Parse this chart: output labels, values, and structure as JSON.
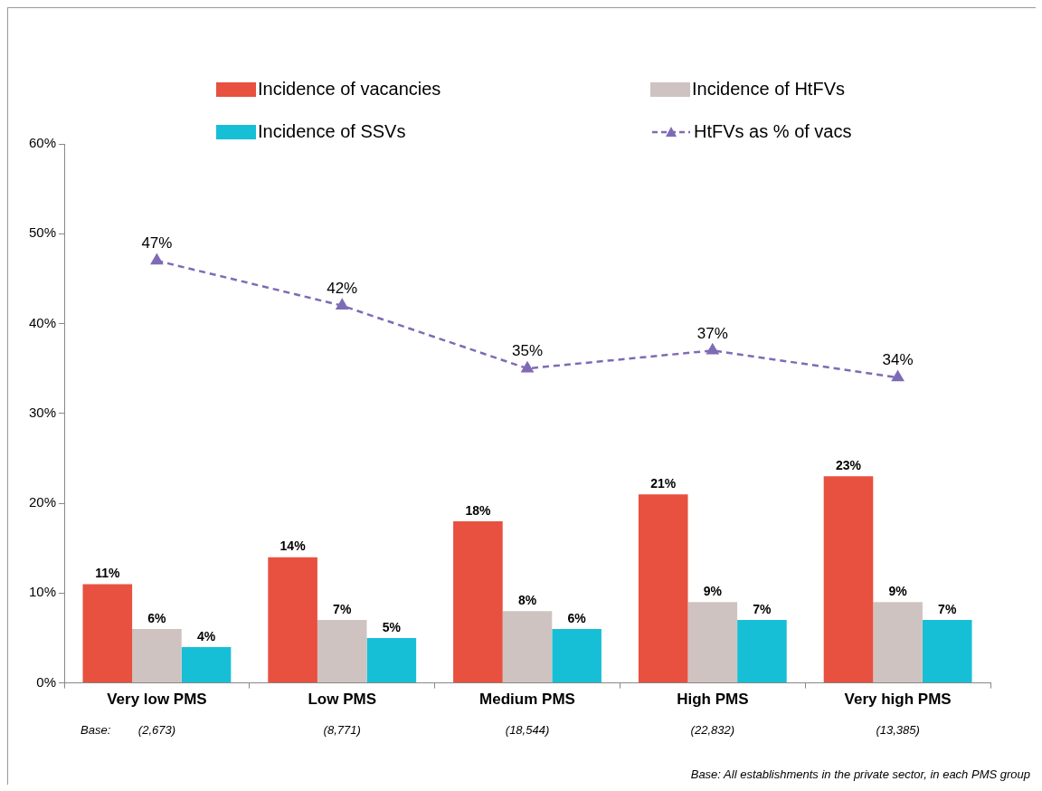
{
  "chart_data": {
    "type": "bar",
    "categories": [
      "Very low PMS",
      "Low PMS",
      "Medium PMS",
      "High PMS",
      "Very high PMS"
    ],
    "series": [
      {
        "name": "Incidence of vacancies",
        "color": "#e8503f",
        "values": [
          11,
          14,
          18,
          21,
          23
        ],
        "value_labels": [
          "11%",
          "14%",
          "18%",
          "21%",
          "23%"
        ]
      },
      {
        "name": "Incidence of HtFVs",
        "color": "#cfc3c1",
        "values": [
          6,
          7,
          8,
          9,
          9
        ],
        "value_labels": [
          "6%",
          "7%",
          "8%",
          "9%",
          "9%"
        ]
      },
      {
        "name": "Incidence of SSVs",
        "color": "#17bfd6",
        "values": [
          4,
          5,
          6,
          7,
          7
        ],
        "value_labels": [
          "4%",
          "5%",
          "6%",
          "7%",
          "7%"
        ]
      },
      {
        "name": "HtFVs as % of vacs",
        "type": "line",
        "color": "#7f6bb5",
        "values": [
          47,
          42,
          35,
          37,
          34
        ],
        "value_labels": [
          "47%",
          "42%",
          "35%",
          "37%",
          "34%"
        ]
      }
    ],
    "ylim": [
      0,
      60
    ],
    "yticks": [
      {
        "value": 0,
        "label": "0%"
      },
      {
        "value": 10,
        "label": "10%"
      },
      {
        "value": 20,
        "label": "20%"
      },
      {
        "value": 30,
        "label": "30%"
      },
      {
        "value": 40,
        "label": "40%"
      },
      {
        "value": 50,
        "label": "50%"
      },
      {
        "value": 60,
        "label": "60%"
      }
    ],
    "grid": false,
    "legend": "top",
    "marker": "triangle",
    "line_style": "dashed",
    "annotations": [
      "Base:",
      "(2,673)",
      "(8,771)",
      "(18,544)",
      "(22,832)",
      "(13,385)",
      "Base: All establishments in the private sector, in each PMS group"
    ]
  }
}
